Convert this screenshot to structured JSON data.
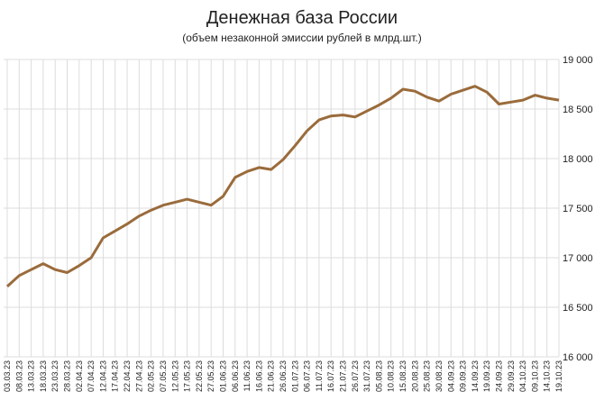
{
  "chart_data": {
    "type": "line",
    "title": "Денежная база России",
    "subtitle": "(объем незаконной эмиссии рублей в млрд.шт.)",
    "categories": [
      "03.03.23",
      "08.03.23",
      "13.03.23",
      "18.03.23",
      "23.03.23",
      "28.03.23",
      "02.04.23",
      "07.04.23",
      "12.04.23",
      "17.04.23",
      "22.04.23",
      "27.04.23",
      "02.05.23",
      "07.05.23",
      "12.05.23",
      "17.05.23",
      "22.05.23",
      "27.05.23",
      "01.06.23",
      "06.06.23",
      "11.06.23",
      "16.06.23",
      "21.06.23",
      "26.06.23",
      "01.07.23",
      "06.07.23",
      "11.07.23",
      "16.07.23",
      "21.07.23",
      "26.07.23",
      "31.07.23",
      "05.08.23",
      "10.08.23",
      "15.08.23",
      "20.08.23",
      "25.08.23",
      "30.08.23",
      "04.09.23",
      "09.09.23",
      "14.09.23",
      "19.09.23",
      "24.09.23",
      "29.09.23",
      "04.10.23",
      "09.10.23",
      "14.10.23",
      "19.10.23"
    ],
    "series": [
      {
        "color": "#9a6b3b",
        "values": [
          16710,
          16820,
          16880,
          16940,
          16880,
          16850,
          16920,
          17000,
          17200,
          17270,
          17340,
          17420,
          17480,
          17530,
          17560,
          17590,
          17560,
          17530,
          17620,
          17810,
          17870,
          17910,
          17890,
          17990,
          18130,
          18280,
          18390,
          18430,
          18440,
          18420,
          18480,
          18540,
          18610,
          18700,
          18680,
          18620,
          18580,
          18650,
          18690,
          18730,
          18670,
          18550,
          18570,
          18590,
          18640,
          18610,
          18590
        ]
      }
    ],
    "ylim": [
      16000,
      19000
    ],
    "yticks": [
      {
        "value": 16000,
        "label": "16 000"
      },
      {
        "value": 16500,
        "label": "16 500"
      },
      {
        "value": 17000,
        "label": "17 000"
      },
      {
        "value": 17500,
        "label": "17 500"
      },
      {
        "value": 18000,
        "label": "18 000"
      },
      {
        "value": 18500,
        "label": "18 500"
      },
      {
        "value": 19000,
        "label": "19 000"
      }
    ],
    "grid": true
  }
}
